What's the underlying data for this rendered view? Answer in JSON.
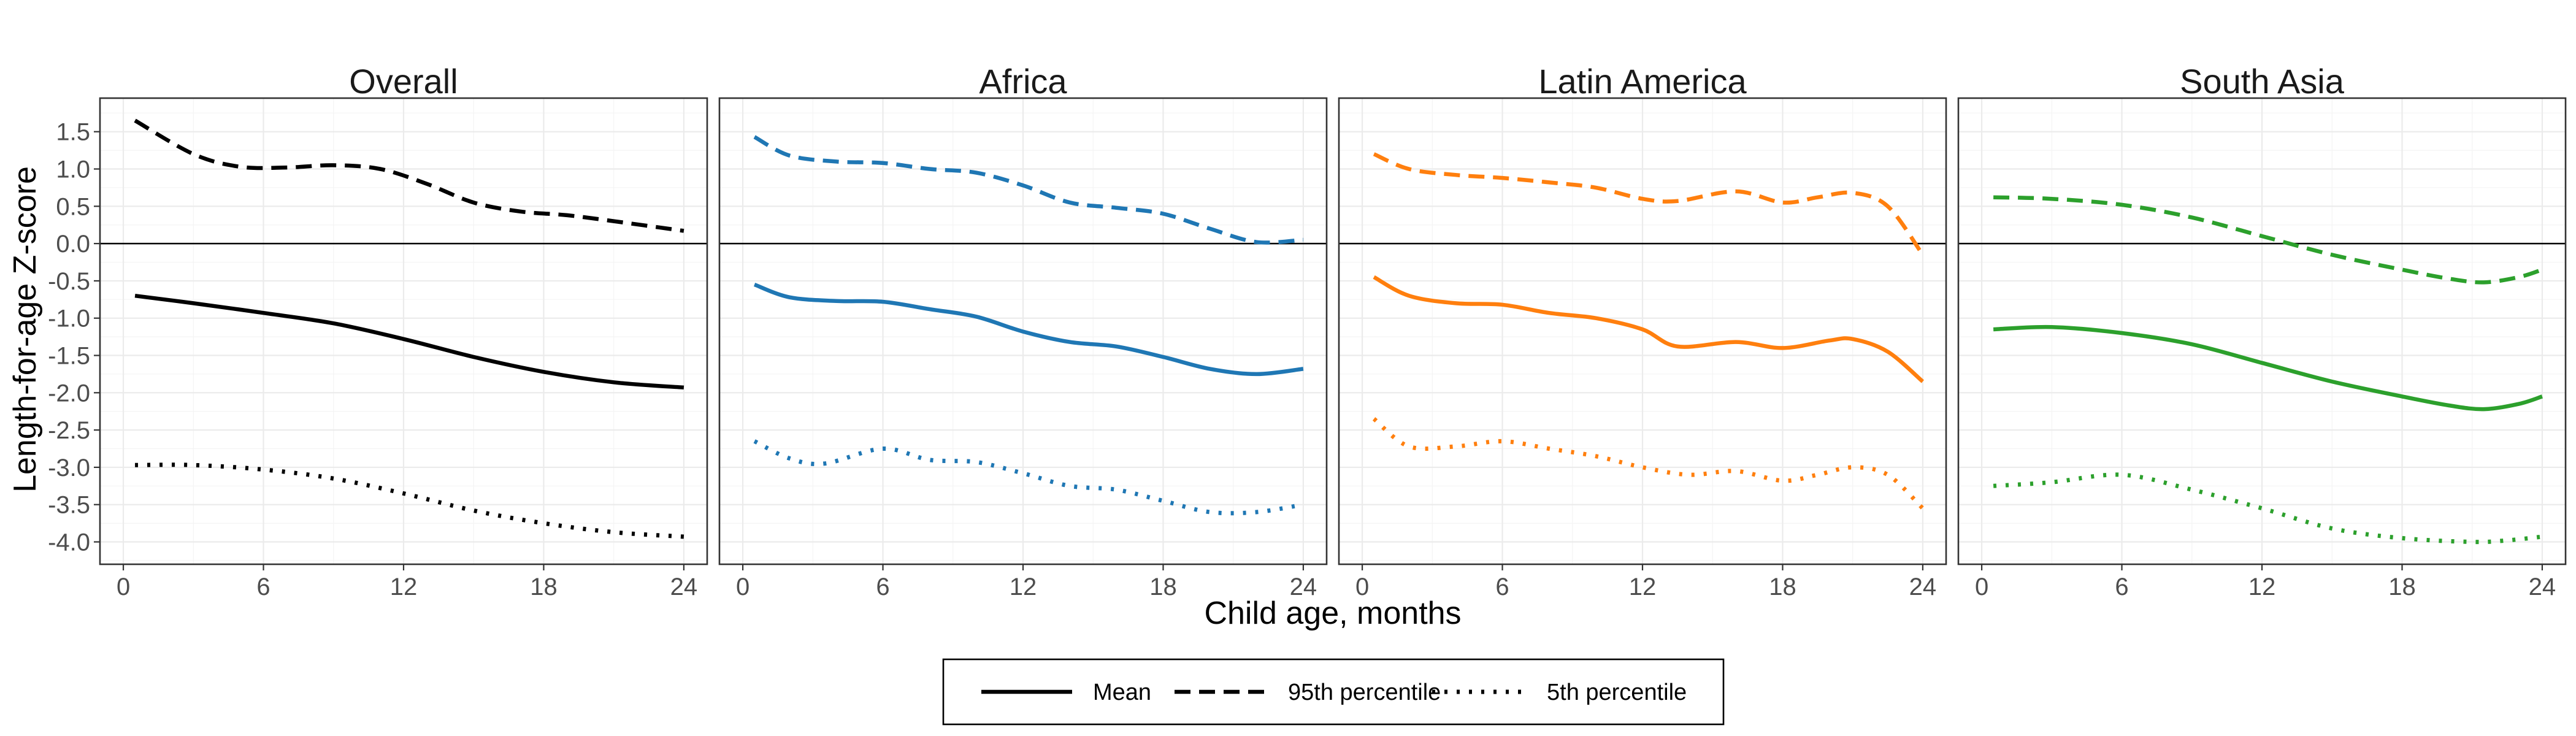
{
  "chart_data": {
    "type": "line",
    "xlabel": "Child age, months",
    "ylabel": "Length-for-age Z-score",
    "xlim": [
      -1,
      25
    ],
    "ylim": [
      -4.3,
      1.95
    ],
    "x_ticks": [
      0,
      6,
      12,
      18,
      24
    ],
    "y_ticks": [
      1.5,
      1.0,
      0.5,
      0.0,
      -0.5,
      -1.0,
      -1.5,
      -2.0,
      -2.5,
      -3.0,
      -3.5,
      -4.0
    ],
    "y_tick_labels": [
      "1.5",
      "1.0",
      "0.5",
      "0.0",
      "-0.5",
      "-1.0",
      "-1.5",
      "-2.0",
      "-2.5",
      "-3.0",
      "-3.5",
      "-4.0"
    ],
    "reference_line": 0,
    "grid": true,
    "legend_position": "bottom",
    "legend": [
      {
        "label": "Mean",
        "style": "solid"
      },
      {
        "label": "95th percentile",
        "style": "dashed"
      },
      {
        "label": "5th percentile",
        "style": "dotted"
      }
    ],
    "panels": [
      {
        "title": "Overall",
        "color": "#000000",
        "series": [
          {
            "style": "solid",
            "x": [
              0.5,
              3,
              6,
              9,
              12,
              15,
              18,
              21,
              24
            ],
            "y": [
              -0.7,
              -0.8,
              -0.93,
              -1.07,
              -1.28,
              -1.52,
              -1.72,
              -1.86,
              -1.93
            ]
          },
          {
            "style": "dashed",
            "x": [
              0.5,
              3,
              5,
              7,
              9,
              11,
              13,
              15,
              17,
              19,
              21,
              24
            ],
            "y": [
              1.65,
              1.2,
              1.03,
              1.02,
              1.05,
              1.0,
              0.8,
              0.55,
              0.43,
              0.38,
              0.3,
              0.17
            ]
          },
          {
            "style": "dotted",
            "x": [
              0.5,
              3,
              6,
              9,
              12,
              15,
              18,
              21,
              24
            ],
            "y": [
              -2.97,
              -2.97,
              -3.03,
              -3.15,
              -3.35,
              -3.58,
              -3.75,
              -3.87,
              -3.93
            ]
          }
        ]
      },
      {
        "title": "Africa",
        "color": "#1f77b4",
        "series": [
          {
            "style": "solid",
            "x": [
              0.5,
              2,
              4,
              6,
              8,
              10,
              12,
              14,
              16,
              18,
              20,
              22,
              24
            ],
            "y": [
              -0.55,
              -0.72,
              -0.77,
              -0.78,
              -0.88,
              -0.98,
              -1.18,
              -1.32,
              -1.38,
              -1.52,
              -1.68,
              -1.75,
              -1.68
            ]
          },
          {
            "style": "dashed",
            "x": [
              0.5,
              2,
              4,
              6,
              8,
              10,
              12,
              14,
              16,
              18,
              20,
              22,
              24
            ],
            "y": [
              1.43,
              1.18,
              1.1,
              1.08,
              1.0,
              0.95,
              0.78,
              0.55,
              0.48,
              0.4,
              0.2,
              0.02,
              0.05
            ]
          },
          {
            "style": "dotted",
            "x": [
              0.5,
              2,
              3.5,
              6,
              8,
              10,
              12,
              14,
              16,
              18,
              20,
              22,
              24
            ],
            "y": [
              -2.65,
              -2.88,
              -2.95,
              -2.75,
              -2.9,
              -2.93,
              -3.08,
              -3.25,
              -3.3,
              -3.45,
              -3.6,
              -3.6,
              -3.5
            ]
          }
        ]
      },
      {
        "title": "Latin America",
        "color": "#ff7f0e",
        "series": [
          {
            "style": "solid",
            "x": [
              0.5,
              2,
              4,
              6,
              8,
              10,
              12,
              13.5,
              16,
              18,
              20,
              21,
              22.5,
              24
            ],
            "y": [
              -0.45,
              -0.7,
              -0.8,
              -0.82,
              -0.93,
              -1.0,
              -1.15,
              -1.38,
              -1.32,
              -1.4,
              -1.3,
              -1.28,
              -1.45,
              -1.85
            ]
          },
          {
            "style": "dashed",
            "x": [
              0.5,
              2,
              4,
              6,
              8,
              10,
              12,
              13.5,
              16,
              18,
              19.5,
              21,
              22.5,
              24
            ],
            "y": [
              1.2,
              1.0,
              0.92,
              0.88,
              0.82,
              0.75,
              0.6,
              0.57,
              0.7,
              0.55,
              0.62,
              0.68,
              0.5,
              -0.15
            ]
          },
          {
            "style": "dotted",
            "x": [
              0.5,
              2,
              4,
              6,
              8,
              10,
              12,
              14,
              16,
              18,
              19.5,
              21,
              22.5,
              24
            ],
            "y": [
              -2.35,
              -2.72,
              -2.72,
              -2.65,
              -2.75,
              -2.85,
              -3.0,
              -3.1,
              -3.05,
              -3.18,
              -3.1,
              -3.0,
              -3.1,
              -3.55
            ]
          }
        ]
      },
      {
        "title": "South Asia",
        "color": "#2ca02c",
        "series": [
          {
            "style": "solid",
            "x": [
              0.5,
              3,
              6,
              9,
              12,
              15,
              18,
              20,
              21.5,
              23,
              24
            ],
            "y": [
              -1.15,
              -1.12,
              -1.2,
              -1.35,
              -1.6,
              -1.85,
              -2.05,
              -2.17,
              -2.22,
              -2.15,
              -2.05
            ]
          },
          {
            "style": "dashed",
            "x": [
              0.5,
              3,
              6,
              9,
              12,
              15,
              18,
              20,
              21.5,
              23,
              24
            ],
            "y": [
              0.62,
              0.6,
              0.52,
              0.35,
              0.1,
              -0.15,
              -0.35,
              -0.47,
              -0.52,
              -0.45,
              -0.35
            ]
          },
          {
            "style": "dotted",
            "x": [
              0.5,
              3,
              6,
              9,
              12,
              15,
              18,
              21,
              22.5,
              24
            ],
            "y": [
              -3.25,
              -3.2,
              -3.1,
              -3.3,
              -3.55,
              -3.82,
              -3.95,
              -4.0,
              -3.98,
              -3.93
            ]
          }
        ]
      }
    ]
  }
}
